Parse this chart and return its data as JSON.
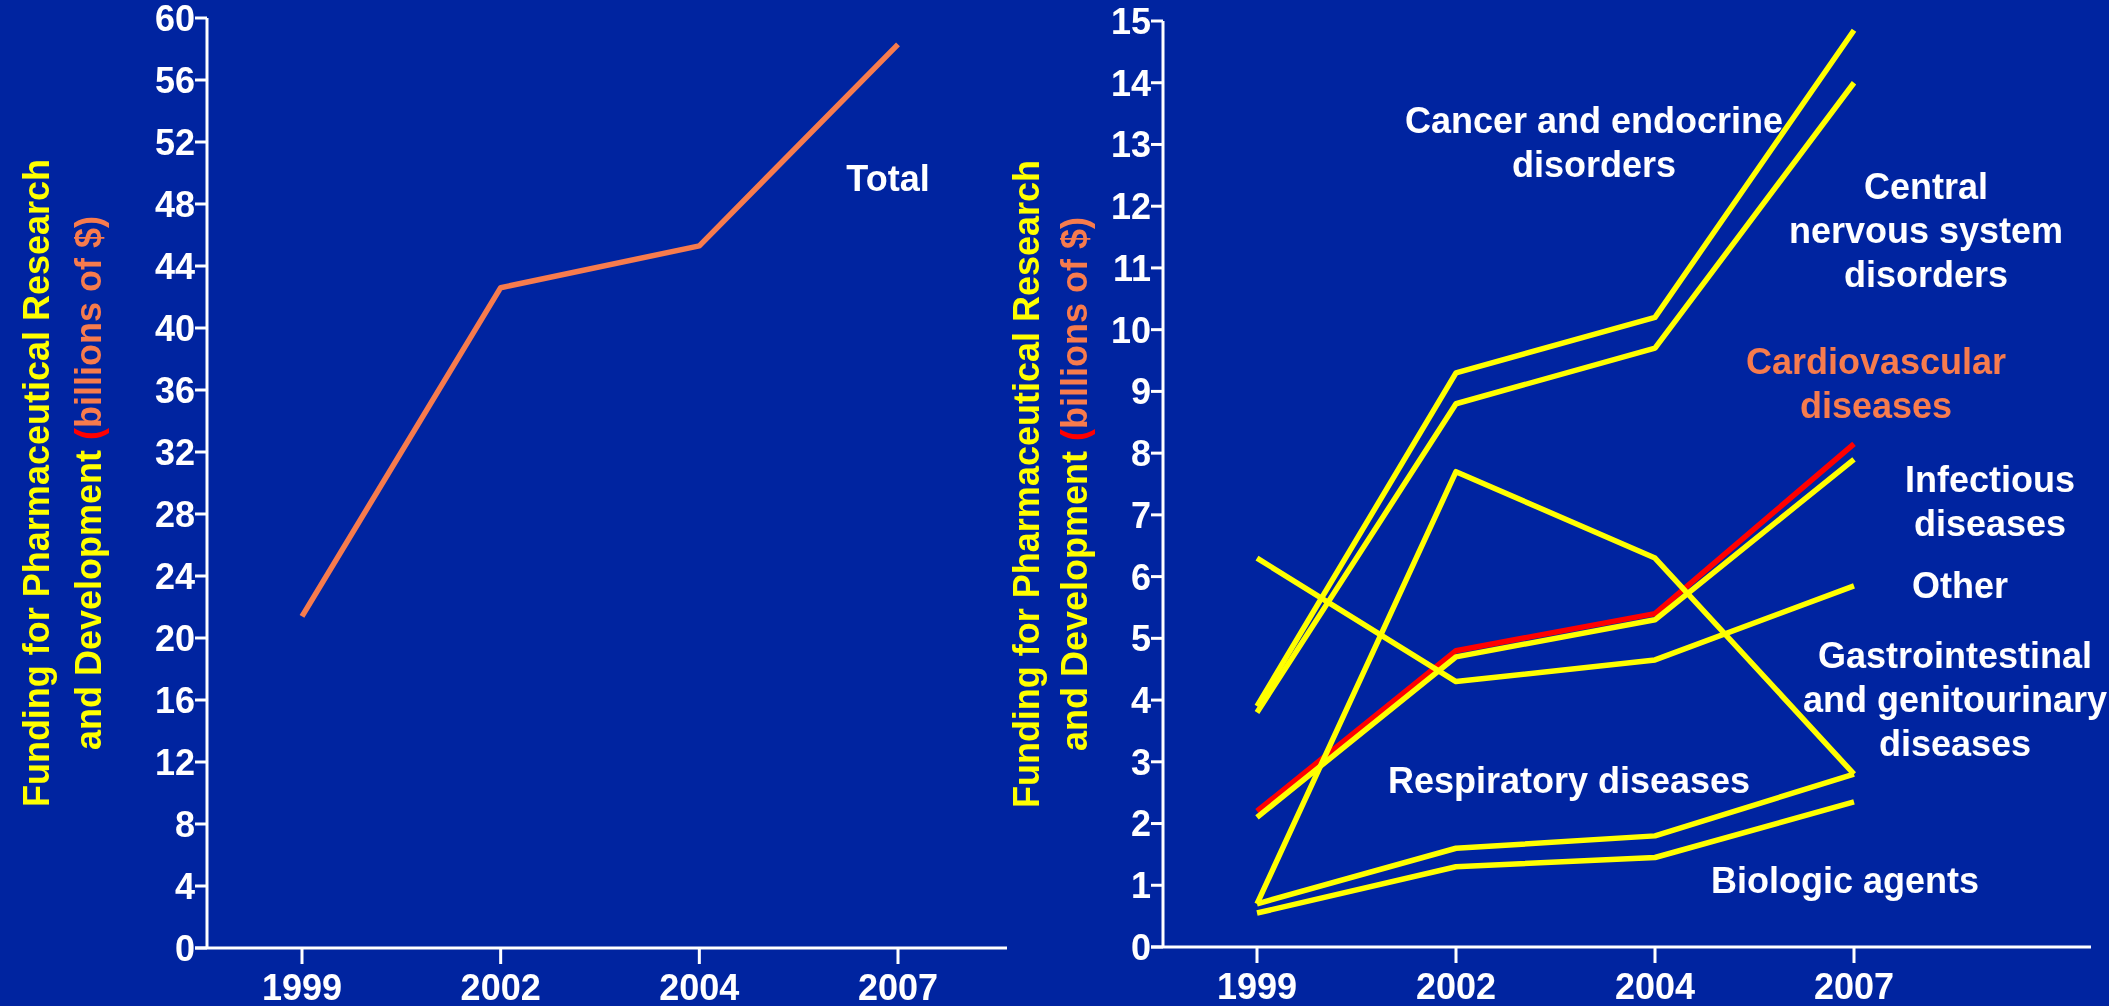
{
  "chart_data": [
    {
      "type": "line",
      "ylabel": "Funding for Pharmaceutical Research and Development (billions of $)",
      "categories": [
        "1999",
        "2002",
        "2004",
        "2007"
      ],
      "series": [
        {
          "name": "Total",
          "color": "#f77b4d",
          "values": [
            21.4,
            42.6,
            45.3,
            58.3
          ]
        }
      ],
      "ylim": [
        0,
        60
      ],
      "yticks": [
        0,
        4,
        8,
        12,
        16,
        20,
        24,
        28,
        32,
        36,
        40,
        44,
        48,
        52,
        56,
        60
      ]
    },
    {
      "type": "line",
      "ylabel": "Funding for Pharmaceutical Research and Development (billions of $)",
      "categories": [
        "1999",
        "2002",
        "2004",
        "2007"
      ],
      "series": [
        {
          "name": "Cancer and endocrine disorders",
          "color": "#ffff00",
          "values": [
            3.9,
            9.3,
            10.2,
            14.85
          ]
        },
        {
          "name": "Central nervous system disorders",
          "color": "#ffff00",
          "values": [
            3.8,
            8.8,
            9.7,
            14.0
          ]
        },
        {
          "name": "Cardiovascular diseases",
          "color": "#ff0000",
          "values": [
            2.2,
            4.8,
            5.4,
            8.15
          ]
        },
        {
          "name": "Infectious diseases",
          "color": "#ffff00",
          "values": [
            2.1,
            4.7,
            5.3,
            7.9
          ]
        },
        {
          "name": "Other",
          "color": "#ffff00",
          "values": [
            6.3,
            4.3,
            4.65,
            5.85
          ]
        },
        {
          "name": "Gastrointestinal and genitourinary diseases",
          "color": "#ffff00",
          "values": [
            0.7,
            7.7,
            6.3,
            2.8
          ]
        },
        {
          "name": "Respiratory diseases",
          "color": "#ffff00",
          "values": [
            0.7,
            1.6,
            1.8,
            2.8
          ]
        },
        {
          "name": "Biologic agents",
          "color": "#ffff00",
          "values": [
            0.55,
            1.3,
            1.45,
            2.35
          ]
        }
      ],
      "ylim": [
        0,
        15
      ],
      "yticks": [
        0,
        1,
        2,
        3,
        4,
        5,
        6,
        7,
        8,
        9,
        10,
        11,
        12,
        13,
        14,
        15
      ]
    }
  ]
}
